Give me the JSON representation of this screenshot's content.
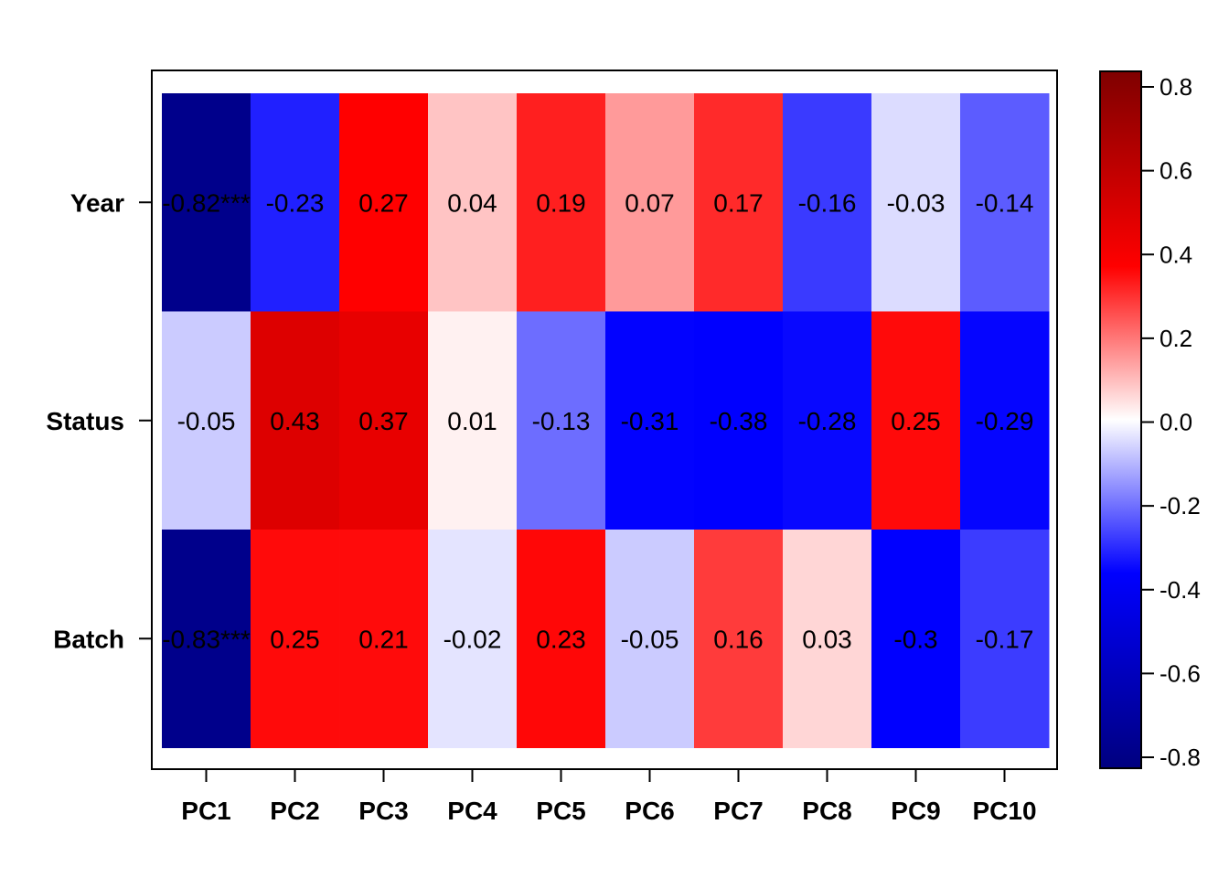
{
  "chart_data": {
    "type": "heatmap",
    "title": "",
    "xlabel": "",
    "ylabel": "",
    "rows": [
      "Year",
      "Status",
      "Batch"
    ],
    "columns": [
      "PC1",
      "PC2",
      "PC3",
      "PC4",
      "PC5",
      "PC6",
      "PC7",
      "PC8",
      "PC9",
      "PC10"
    ],
    "values": [
      [
        -0.82,
        -0.23,
        0.27,
        0.04,
        0.19,
        0.07,
        0.17,
        -0.16,
        -0.03,
        -0.14
      ],
      [
        -0.05,
        0.43,
        0.37,
        0.01,
        -0.13,
        -0.31,
        -0.38,
        -0.28,
        0.25,
        -0.29
      ],
      [
        -0.83,
        0.25,
        0.21,
        -0.02,
        0.23,
        -0.05,
        0.16,
        0.03,
        -0.3,
        -0.17
      ]
    ],
    "labels": [
      [
        "-0.82***",
        "-0.23",
        "0.27",
        "0.04",
        "0.19",
        "0.07",
        "0.17",
        "-0.16",
        "-0.03",
        "-0.14"
      ],
      [
        "-0.05",
        "0.43",
        "0.37",
        "0.01",
        "-0.13",
        "-0.31",
        "-0.38",
        "-0.28",
        "0.25",
        "-0.29"
      ],
      [
        "-0.83***",
        "0.25",
        "0.21",
        "-0.02",
        "0.23",
        "-0.05",
        "0.16",
        "0.03",
        "-0.3",
        "-0.17"
      ]
    ],
    "colorbar": {
      "range": [
        -0.83,
        0.83
      ],
      "ticks": [
        "0.8",
        "0.6",
        "0.4",
        "0.2",
        "0.0",
        "-0.2",
        "-0.4",
        "-0.6",
        "-0.8"
      ],
      "colors": [
        "#00007F",
        "#0000FF",
        "#FFFFFF",
        "#FF0000",
        "#7F0000"
      ]
    },
    "colors": {
      "Year": [
        "#00008B",
        "#2020FF",
        "#FF0000",
        "#FFC4C4",
        "#FF1F1F",
        "#FF9A9A",
        "#FF2A2A",
        "#3A3AFF",
        "#DCDCFF",
        "#5C5CFF"
      ],
      "Status": [
        "#CBCBFF",
        "#DD0000",
        "#E80000",
        "#FFF1F1",
        "#6D6DFF",
        "#0202FF",
        "#0000FF",
        "#0808FF",
        "#FF0A0A",
        "#0505FF"
      ],
      "Batch": [
        "#00008B",
        "#FF0A0A",
        "#FF0B0B",
        "#E4E4FF",
        "#FF0707",
        "#CBCBFF",
        "#FF3B3B",
        "#FFD6D6",
        "#0000FF",
        "#3C3CFF"
      ]
    },
    "grid": false,
    "legend": "right (colorbar)"
  }
}
